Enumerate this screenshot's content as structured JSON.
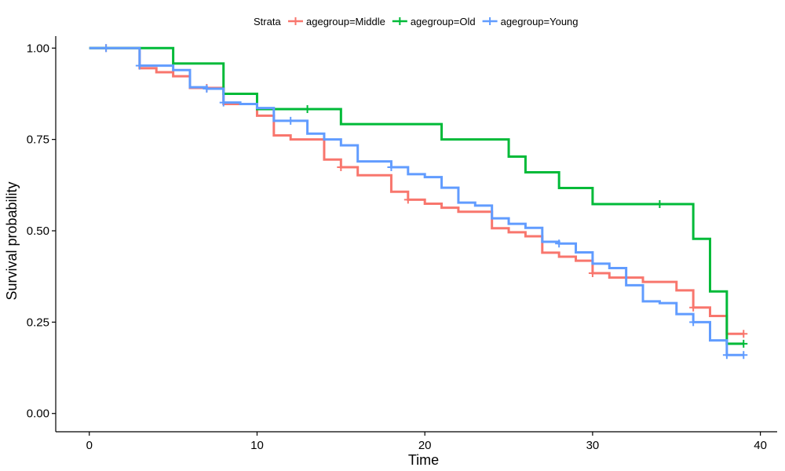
{
  "chart_data": {
    "type": "line",
    "subtype": "step",
    "xlabel": "Time",
    "ylabel": "Survival probability",
    "xlim": [
      -2,
      41
    ],
    "ylim": [
      -0.05,
      1.05
    ],
    "x_ticks": [
      0,
      10,
      20,
      30,
      40
    ],
    "y_ticks": [
      0.0,
      0.25,
      0.5,
      0.75,
      1.0
    ],
    "x_tick_labels": [
      "0",
      "10",
      "20",
      "30",
      "40"
    ],
    "y_tick_labels": [
      "0.00",
      "0.25",
      "0.50",
      "0.75",
      "1.00"
    ],
    "grid": false,
    "legend": {
      "title": "Strata",
      "position": "top"
    },
    "series": [
      {
        "name": "agegroup=Middle",
        "color": "#F8766D",
        "x": [
          0,
          3,
          4,
          5,
          6,
          7,
          8,
          9,
          10,
          11,
          12,
          14,
          15,
          16,
          18,
          19,
          20,
          21,
          22,
          24,
          25,
          26,
          27,
          28,
          29,
          30,
          31,
          32,
          33,
          35,
          36,
          37,
          38,
          39
        ],
        "y": [
          1.0,
          0.945,
          0.934,
          0.923,
          0.891,
          0.891,
          0.847,
          0.847,
          0.815,
          0.761,
          0.75,
          0.695,
          0.674,
          0.652,
          0.607,
          0.585,
          0.574,
          0.563,
          0.552,
          0.507,
          0.496,
          0.485,
          0.44,
          0.429,
          0.418,
          0.384,
          0.372,
          0.372,
          0.36,
          0.337,
          0.29,
          0.267,
          0.218,
          0.218
        ],
        "censor_x": [
          1,
          7,
          15,
          19,
          30,
          36,
          39
        ],
        "censor_y": [
          1.0,
          0.891,
          0.674,
          0.585,
          0.384,
          0.29,
          0.218
        ]
      },
      {
        "name": "agegroup=Old",
        "color": "#00BA38",
        "x": [
          0,
          3,
          5,
          8,
          10,
          15,
          21,
          25,
          26,
          28,
          30,
          36,
          37,
          38,
          39
        ],
        "y": [
          1.0,
          1.0,
          0.958,
          0.875,
          0.833,
          0.792,
          0.75,
          0.703,
          0.66,
          0.617,
          0.573,
          0.478,
          0.334,
          0.191,
          0.191
        ],
        "censor_x": [
          13,
          34,
          39
        ],
        "censor_y": [
          0.833,
          0.573,
          0.191
        ]
      },
      {
        "name": "agegroup=Young",
        "color": "#619CFF",
        "x": [
          0,
          3,
          5,
          6,
          7,
          8,
          9,
          10,
          11,
          13,
          14,
          15,
          16,
          18,
          19,
          20,
          21,
          22,
          23,
          24,
          25,
          26,
          27,
          28,
          29,
          30,
          31,
          32,
          33,
          34,
          35,
          36,
          37,
          38,
          39
        ],
        "y": [
          1.0,
          0.952,
          0.94,
          0.893,
          0.889,
          0.851,
          0.847,
          0.836,
          0.801,
          0.766,
          0.75,
          0.734,
          0.69,
          0.674,
          0.655,
          0.647,
          0.618,
          0.577,
          0.569,
          0.534,
          0.519,
          0.508,
          0.47,
          0.465,
          0.441,
          0.41,
          0.398,
          0.351,
          0.307,
          0.302,
          0.272,
          0.25,
          0.2,
          0.16,
          0.16
        ],
        "censor_x": [
          1,
          3,
          7,
          8,
          12,
          18,
          28,
          36,
          38,
          39
        ],
        "censor_y": [
          1.0,
          0.952,
          0.889,
          0.851,
          0.801,
          0.674,
          0.465,
          0.25,
          0.16,
          0.16
        ]
      }
    ]
  }
}
